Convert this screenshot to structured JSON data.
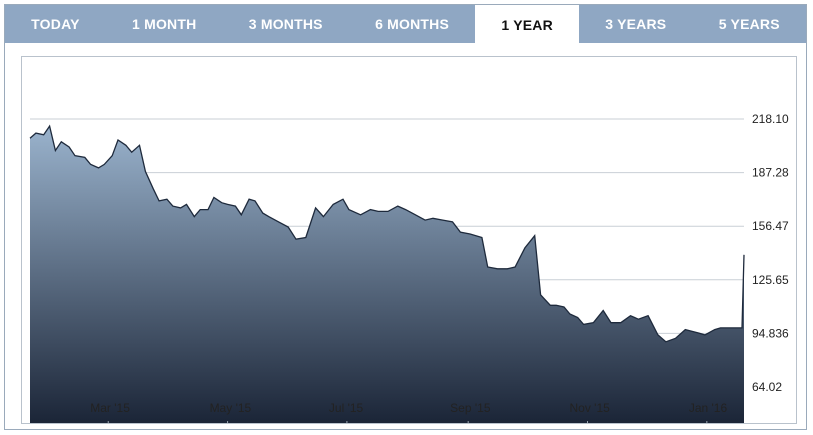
{
  "tabs": [
    {
      "label": "TODAY",
      "active": false
    },
    {
      "label": "1 MONTH",
      "active": false
    },
    {
      "label": "3 MONTHS",
      "active": false
    },
    {
      "label": "6 MONTHS",
      "active": false
    },
    {
      "label": "1 YEAR",
      "active": true
    },
    {
      "label": "3 YEARS",
      "active": false
    },
    {
      "label": "5 YEARS",
      "active": false
    }
  ],
  "colors": {
    "tab_bar": "#8fa7c3",
    "area_top": "#9ab3cd",
    "area_bottom": "#1b2537",
    "line": "#1e2a3c"
  },
  "chart_data": {
    "type": "area",
    "title": "",
    "xlabel": "",
    "ylabel": "",
    "x_ticks": [
      "Mar '15",
      "May '15",
      "Jul '15",
      "Sep '15",
      "Nov '15",
      "Jan '16"
    ],
    "y_ticks": [
      "218.10",
      "187.28",
      "156.47",
      "125.65",
      "94.836",
      "64.02"
    ],
    "ylim": [
      64.02,
      218.1
    ],
    "grid": "horizontal",
    "series": [
      {
        "x": [
          "2015-01-20",
          "2015-01-23",
          "2015-01-27",
          "2015-01-30",
          "2015-02-02",
          "2015-02-05",
          "2015-02-09",
          "2015-02-12",
          "2015-02-17",
          "2015-02-20",
          "2015-02-24",
          "2015-02-27",
          "2015-03-03",
          "2015-03-06",
          "2015-03-10",
          "2015-03-13",
          "2015-03-17",
          "2015-03-20",
          "2015-03-24",
          "2015-03-27",
          "2015-03-31",
          "2015-04-03",
          "2015-04-07",
          "2015-04-10",
          "2015-04-14",
          "2015-04-17",
          "2015-04-21",
          "2015-04-24",
          "2015-04-28",
          "2015-05-01",
          "2015-05-05",
          "2015-05-08",
          "2015-05-12",
          "2015-05-15",
          "2015-05-19",
          "2015-05-22",
          "2015-05-27",
          "2015-06-01",
          "2015-06-05",
          "2015-06-10",
          "2015-06-15",
          "2015-06-19",
          "2015-06-24",
          "2015-06-29",
          "2015-07-02",
          "2015-07-08",
          "2015-07-13",
          "2015-07-17",
          "2015-07-22",
          "2015-07-27",
          "2015-07-31",
          "2015-08-05",
          "2015-08-10",
          "2015-08-14",
          "2015-08-19",
          "2015-08-24",
          "2015-08-28",
          "2015-09-02",
          "2015-09-08",
          "2015-09-11",
          "2015-09-16",
          "2015-09-21",
          "2015-09-25",
          "2015-09-30",
          "2015-10-05",
          "2015-10-08",
          "2015-10-13",
          "2015-10-16",
          "2015-10-20",
          "2015-10-23",
          "2015-10-27",
          "2015-10-30",
          "2015-11-04",
          "2015-11-09",
          "2015-11-13",
          "2015-11-18",
          "2015-11-23",
          "2015-11-27",
          "2015-12-02",
          "2015-12-07",
          "2015-12-11",
          "2015-12-16",
          "2015-12-21",
          "2015-12-28",
          "2015-12-31",
          "2016-01-05",
          "2016-01-08",
          "2016-01-13",
          "2016-01-19",
          "2016-01-20"
        ],
        "y": [
          207,
          210,
          209,
          214,
          200,
          205,
          202,
          197,
          196,
          192,
          190,
          192,
          197,
          206,
          203,
          199,
          203,
          188,
          178,
          171,
          172,
          168,
          167,
          169,
          162,
          166,
          166,
          173,
          170,
          169,
          168,
          163,
          172,
          171,
          164,
          162,
          159,
          156,
          149,
          150,
          167,
          162,
          169,
          172,
          166,
          163,
          166,
          165,
          165,
          168,
          166,
          163,
          160,
          161,
          160,
          159,
          153,
          152,
          150,
          133,
          132,
          132,
          133,
          144,
          151,
          117,
          111,
          111,
          110,
          106,
          104,
          100,
          101,
          108,
          101,
          101,
          105,
          103,
          105,
          94,
          90,
          92,
          97,
          95,
          94,
          97,
          98,
          98,
          98,
          140
        ]
      }
    ]
  }
}
